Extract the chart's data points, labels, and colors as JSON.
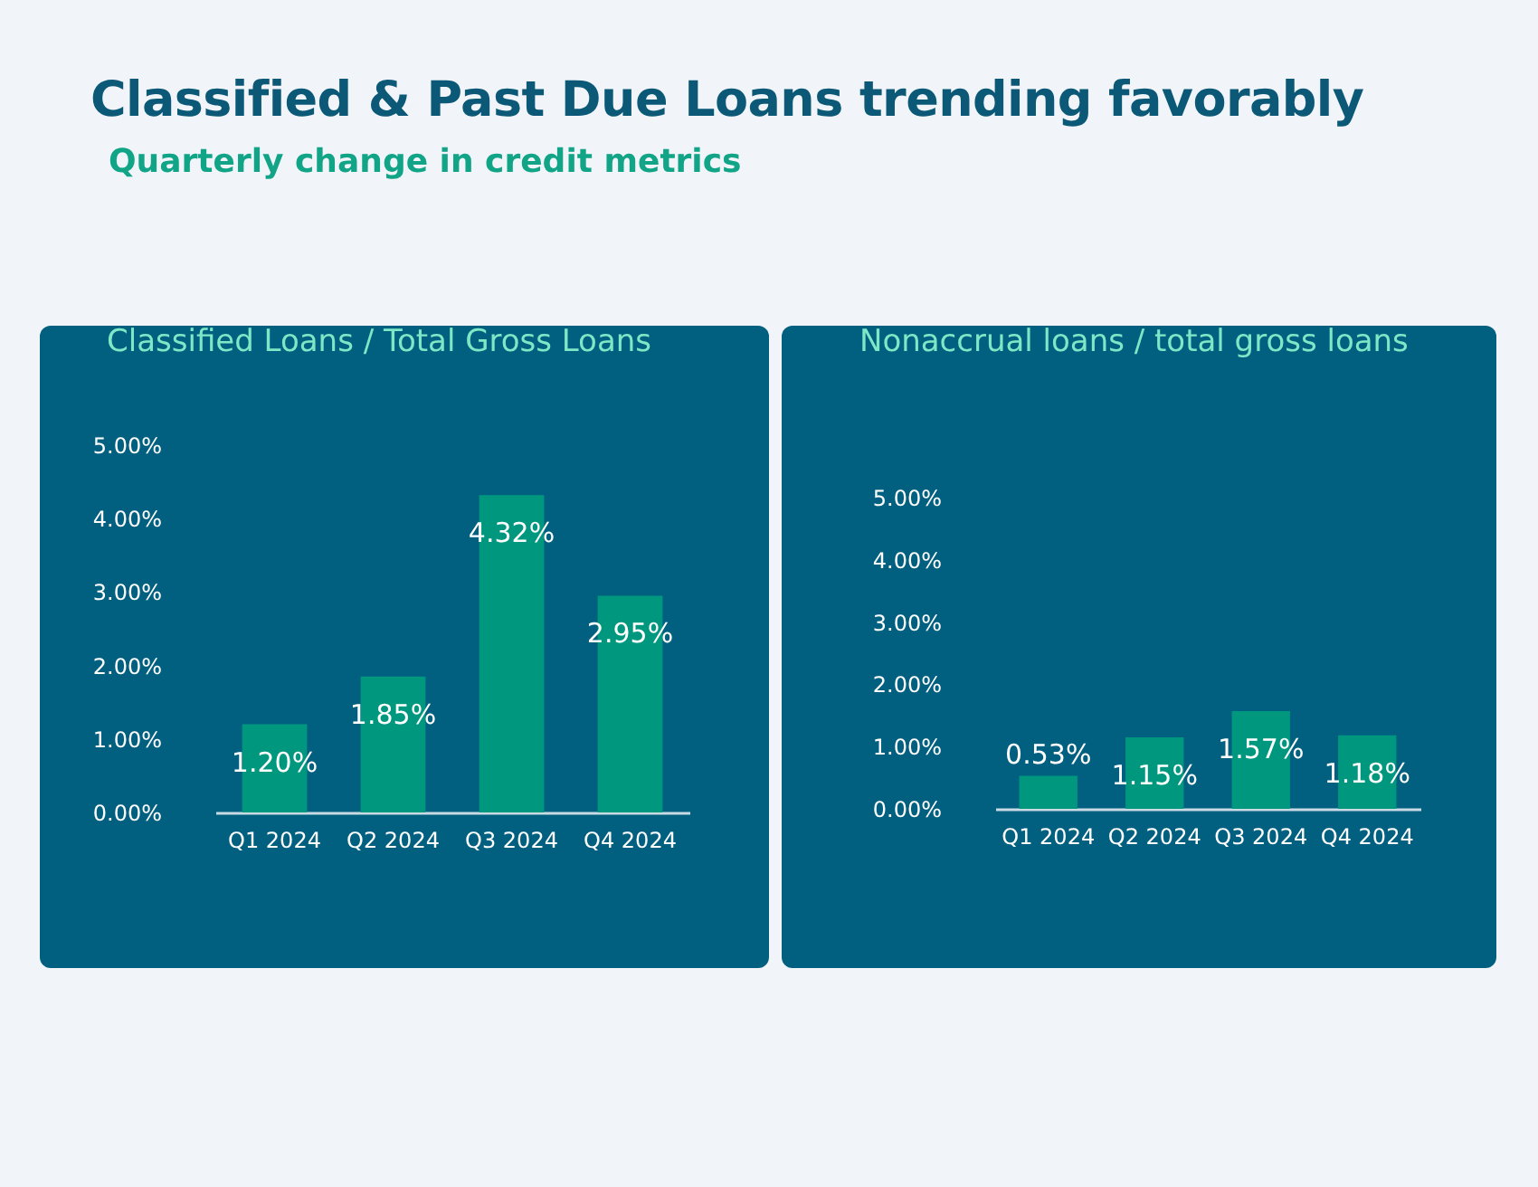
{
  "chart_data": [
    {
      "type": "other",
      "title": "Classified & Past Due Loans trending favorably",
      "subtitle": "Quarterly change in credit metrics"
    },
    {
      "type": "bar",
      "title": "Classified Loans / Total Gross Loans",
      "categories": [
        "Q1 2024",
        "Q2 2024",
        "Q3 2024",
        "Q4 2024"
      ],
      "values": [
        1.2,
        1.85,
        4.32,
        2.95
      ],
      "value_labels": [
        "1.20%",
        "1.85%",
        "4.32%",
        "2.95%"
      ],
      "color": "#00977f",
      "ylim": [
        0,
        5
      ],
      "yticks": [
        {
          "value": 0,
          "label": "0.00%"
        },
        {
          "value": 1,
          "label": "1.00%"
        },
        {
          "value": 2,
          "label": "2.00%"
        },
        {
          "value": 3,
          "label": "3.00%"
        },
        {
          "value": 4,
          "label": "4.00%"
        },
        {
          "value": 5,
          "label": "5.00%"
        }
      ],
      "grid": false
    },
    {
      "type": "bar",
      "title": "Nonaccrual loans / total gross loans",
      "categories": [
        "Q1 2024",
        "Q2 2024",
        "Q3 2024",
        "Q4 2024"
      ],
      "values": [
        0.53,
        1.15,
        1.57,
        1.18
      ],
      "value_labels": [
        "0.53%",
        "1.15%",
        "1.57%",
        "1.18%"
      ],
      "color": "#00977f",
      "ylim": [
        0,
        5
      ],
      "yticks": [
        {
          "value": 0,
          "label": "0.00%"
        },
        {
          "value": 1,
          "label": "1.00%"
        },
        {
          "value": 2,
          "label": "2.00%"
        },
        {
          "value": 3,
          "label": "3.00%"
        },
        {
          "value": 4,
          "label": "4.00%"
        },
        {
          "value": 5,
          "label": "5.00%"
        }
      ],
      "grid": false
    }
  ]
}
